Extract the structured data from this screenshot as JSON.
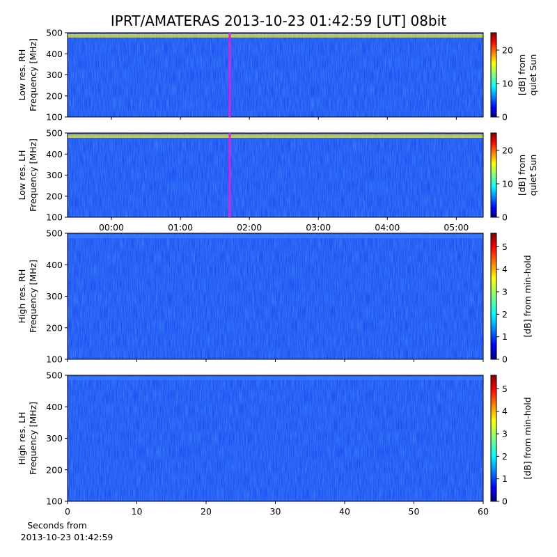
{
  "title": "IPRT/AMATERAS 2013-10-23 01:42:59 [UT]   08bit",
  "xlabel": [
    "Seconds from",
    "2013-10-23 01:42:59"
  ],
  "chart_data": [
    {
      "type": "heatmap",
      "ylabel": [
        "Low res. RH",
        "Frequency [MHz]"
      ],
      "xlim": [
        -0.636,
        5.39
      ],
      "ylim": [
        100,
        500
      ],
      "xticks": [
        {
          "value": 0,
          "label": "00:00"
        },
        {
          "value": 1,
          "label": "01:00"
        },
        {
          "value": 2,
          "label": "02:00"
        },
        {
          "value": 3,
          "label": "03:00"
        },
        {
          "value": 4,
          "label": "04:00"
        },
        {
          "value": 5,
          "label": "05:00"
        }
      ],
      "xtick_labels": false,
      "yticks": [
        100,
        200,
        300,
        400,
        500
      ],
      "marker_x": 1.716,
      "marker_color": "#e020e0",
      "colorbar_label": [
        "[dB] from",
        "quiet Sun"
      ],
      "clim": [
        0,
        25.2
      ],
      "cticks": [
        0,
        10,
        20
      ]
    },
    {
      "type": "heatmap",
      "ylabel": [
        "Low res. LH",
        "Frequency [MHz]"
      ],
      "xlim": [
        -0.636,
        5.39
      ],
      "ylim": [
        100,
        500
      ],
      "xticks": [
        {
          "value": 0,
          "label": "00:00"
        },
        {
          "value": 1,
          "label": "01:00"
        },
        {
          "value": 2,
          "label": "02:00"
        },
        {
          "value": 3,
          "label": "03:00"
        },
        {
          "value": 4,
          "label": "04:00"
        },
        {
          "value": 5,
          "label": "05:00"
        }
      ],
      "xtick_labels": true,
      "yticks": [
        100,
        200,
        300,
        400,
        500
      ],
      "marker_x": 1.716,
      "marker_color": "#e020e0",
      "colorbar_label": [
        "[dB] from",
        "quiet Sun"
      ],
      "clim": [
        0,
        25.2
      ],
      "cticks": [
        0,
        10,
        20
      ]
    },
    {
      "type": "heatmap",
      "ylabel": [
        "High res. RH",
        "Frequency [MHz]"
      ],
      "xlim": [
        0,
        60
      ],
      "ylim": [
        100,
        500
      ],
      "xticks": [
        0,
        10,
        20,
        30,
        40,
        50,
        60
      ],
      "xtick_labels": false,
      "yticks": [
        100,
        200,
        300,
        400,
        500
      ],
      "colorbar_label": [
        "[dB] from min-hold"
      ],
      "clim": [
        0,
        5.6
      ],
      "cticks": [
        0,
        1,
        2,
        3,
        4,
        5
      ]
    },
    {
      "type": "heatmap",
      "ylabel": [
        "High res. LH",
        "Frequency [MHz]"
      ],
      "xlim": [
        0,
        60
      ],
      "ylim": [
        100,
        500
      ],
      "xticks": [
        0,
        10,
        20,
        30,
        40,
        50,
        60
      ],
      "xtick_labels": true,
      "yticks": [
        100,
        200,
        300,
        400,
        500
      ],
      "colorbar_label": [
        "[dB] from min-hold"
      ],
      "clim": [
        0,
        5.6
      ],
      "cticks": [
        0,
        1,
        2,
        3,
        4,
        5
      ]
    }
  ]
}
